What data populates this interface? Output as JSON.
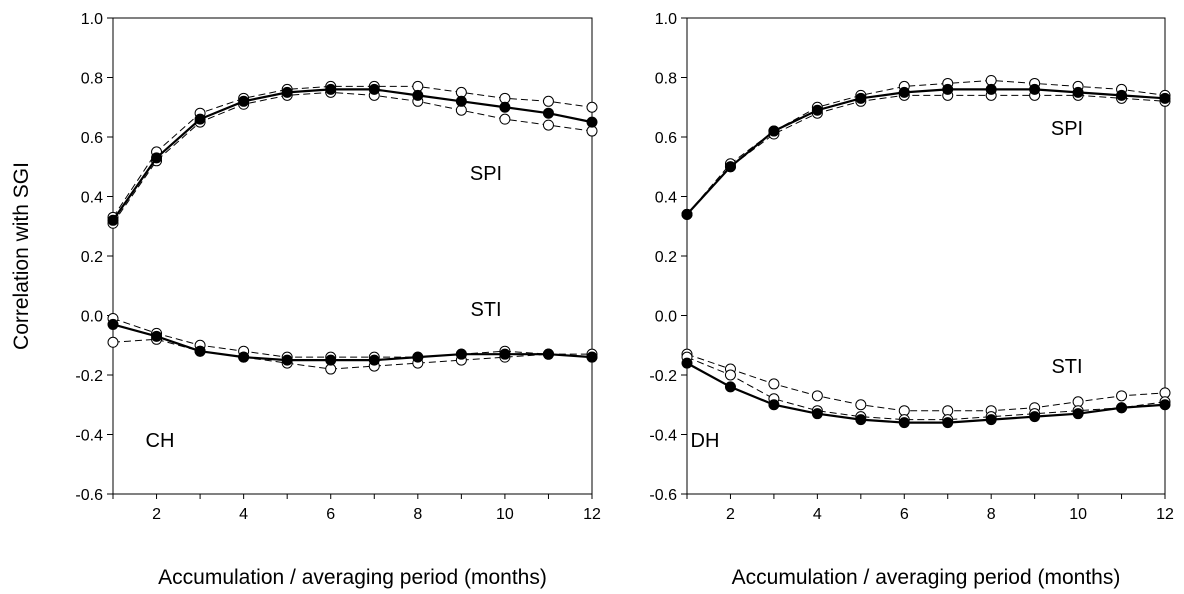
{
  "chart_data": [
    {
      "type": "line",
      "panel_label": "CH",
      "xlabel": "Accumulation / averaging period (months)",
      "ylabel": "Correlation with SGI",
      "xlim": [
        1,
        12
      ],
      "ylim": [
        -0.6,
        1.0
      ],
      "x_ticks": [
        2,
        4,
        6,
        8,
        10,
        12
      ],
      "y_ticks": [
        "-0.6",
        "-0.4",
        "-0.2",
        "0.0",
        "0.2",
        "0.4",
        "0.6",
        "0.8",
        "1.0"
      ],
      "grid": false,
      "annotations": [
        "SPI",
        "STI"
      ],
      "x": [
        1,
        2,
        3,
        4,
        5,
        6,
        7,
        8,
        9,
        10,
        11,
        12
      ],
      "series": [
        {
          "group": "SPI",
          "style": "solid-filled",
          "values": [
            0.32,
            0.53,
            0.66,
            0.72,
            0.75,
            0.76,
            0.76,
            0.74,
            0.72,
            0.7,
            0.68,
            0.65
          ]
        },
        {
          "group": "SPI",
          "style": "dashed-open",
          "values": [
            0.33,
            0.55,
            0.68,
            0.73,
            0.76,
            0.77,
            0.77,
            0.77,
            0.75,
            0.73,
            0.72,
            0.7
          ]
        },
        {
          "group": "SPI",
          "style": "dashed-open",
          "values": [
            0.31,
            0.52,
            0.65,
            0.71,
            0.74,
            0.75,
            0.74,
            0.72,
            0.69,
            0.66,
            0.64,
            0.62
          ]
        },
        {
          "group": "STI",
          "style": "solid-filled",
          "values": [
            -0.03,
            -0.07,
            -0.12,
            -0.14,
            -0.15,
            -0.15,
            -0.15,
            -0.14,
            -0.13,
            -0.13,
            -0.13,
            -0.14
          ]
        },
        {
          "group": "STI",
          "style": "dashed-open",
          "values": [
            -0.01,
            -0.06,
            -0.1,
            -0.12,
            -0.14,
            -0.14,
            -0.14,
            -0.14,
            -0.13,
            -0.12,
            -0.13,
            -0.13
          ]
        },
        {
          "group": "STI",
          "style": "dashed-open",
          "values": [
            -0.09,
            -0.08,
            -0.12,
            -0.14,
            -0.16,
            -0.18,
            -0.17,
            -0.16,
            -0.15,
            -0.14,
            -0.13,
            -0.14
          ]
        }
      ]
    },
    {
      "type": "line",
      "panel_label": "DH",
      "xlabel": "Accumulation / averaging period (months)",
      "ylabel": "",
      "xlim": [
        1,
        12
      ],
      "ylim": [
        -0.6,
        1.0
      ],
      "x_ticks": [
        2,
        4,
        6,
        8,
        10,
        12
      ],
      "y_ticks": [
        "-0.6",
        "-0.4",
        "-0.2",
        "0.0",
        "0.2",
        "0.4",
        "0.6",
        "0.8",
        "1.0"
      ],
      "grid": false,
      "annotations": [
        "SPI",
        "STI"
      ],
      "x": [
        1,
        2,
        3,
        4,
        5,
        6,
        7,
        8,
        9,
        10,
        11,
        12
      ],
      "series": [
        {
          "group": "SPI",
          "style": "solid-filled",
          "values": [
            0.34,
            0.5,
            0.62,
            0.69,
            0.73,
            0.75,
            0.76,
            0.76,
            0.76,
            0.75,
            0.74,
            0.73
          ]
        },
        {
          "group": "SPI",
          "style": "dashed-open",
          "values": [
            0.34,
            0.51,
            0.62,
            0.7,
            0.74,
            0.77,
            0.78,
            0.79,
            0.78,
            0.77,
            0.76,
            0.74
          ]
        },
        {
          "group": "SPI",
          "style": "dashed-open",
          "values": [
            0.34,
            0.5,
            0.61,
            0.68,
            0.72,
            0.74,
            0.74,
            0.74,
            0.74,
            0.74,
            0.73,
            0.72
          ]
        },
        {
          "group": "STI",
          "style": "solid-filled",
          "values": [
            -0.16,
            -0.24,
            -0.3,
            -0.33,
            -0.35,
            -0.36,
            -0.36,
            -0.35,
            -0.34,
            -0.33,
            -0.31,
            -0.3
          ]
        },
        {
          "group": "STI",
          "style": "dashed-open",
          "values": [
            -0.13,
            -0.18,
            -0.23,
            -0.27,
            -0.3,
            -0.32,
            -0.32,
            -0.32,
            -0.31,
            -0.29,
            -0.27,
            -0.26
          ]
        },
        {
          "group": "STI",
          "style": "dashed-open",
          "values": [
            -0.14,
            -0.2,
            -0.28,
            -0.32,
            -0.34,
            -0.35,
            -0.35,
            -0.34,
            -0.33,
            -0.32,
            -0.31,
            -0.29
          ]
        }
      ]
    }
  ]
}
